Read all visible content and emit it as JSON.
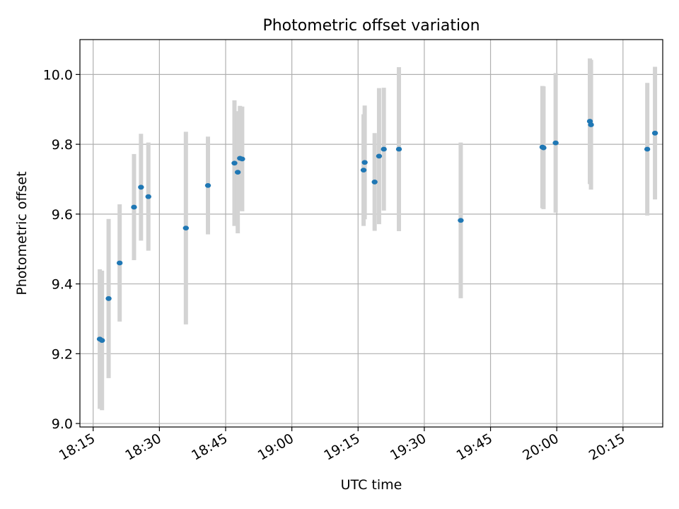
{
  "chart_data": {
    "type": "scatter",
    "title": "Photometric offset variation",
    "xlabel": "UTC time",
    "ylabel": "Photometric offset",
    "x_axis": {
      "kind": "time",
      "range": [
        "18:12",
        "20:24"
      ],
      "ticks": [
        "18:15",
        "18:30",
        "18:45",
        "19:00",
        "19:15",
        "19:30",
        "19:45",
        "20:00",
        "20:15"
      ]
    },
    "y_axis": {
      "range": [
        8.99,
        10.1
      ],
      "ticks": [
        "9.0",
        "9.2",
        "9.4",
        "9.6",
        "9.8",
        "10.0"
      ]
    },
    "grid": true,
    "colors": {
      "points": "#1f77b4",
      "error_bars": "#d3d3d3",
      "grid": "#b0b0b0"
    },
    "points": [
      {
        "x": "18:16:30",
        "y": 9.242,
        "yerr": 0.2
      },
      {
        "x": "18:17:00",
        "y": 9.238,
        "yerr": 0.2
      },
      {
        "x": "18:18:30",
        "y": 9.358,
        "yerr": 0.228
      },
      {
        "x": "18:21:00",
        "y": 9.46,
        "yerr": 0.168
      },
      {
        "x": "18:24:15",
        "y": 9.62,
        "yerr": 0.152
      },
      {
        "x": "18:25:50",
        "y": 9.677,
        "yerr": 0.153
      },
      {
        "x": "18:27:30",
        "y": 9.65,
        "yerr": 0.155
      },
      {
        "x": "18:36:00",
        "y": 9.56,
        "yerr": 0.276
      },
      {
        "x": "18:41:00",
        "y": 9.682,
        "yerr": 0.14
      },
      {
        "x": "18:47:00",
        "y": 9.746,
        "yerr": 0.18
      },
      {
        "x": "18:47:45",
        "y": 9.72,
        "yerr": 0.175
      },
      {
        "x": "18:48:15",
        "y": 9.76,
        "yerr": 0.15
      },
      {
        "x": "18:48:45",
        "y": 9.758,
        "yerr": 0.15
      },
      {
        "x": "19:16:15",
        "y": 9.726,
        "yerr": 0.16
      },
      {
        "x": "19:16:30",
        "y": 9.748,
        "yerr": 0.163
      },
      {
        "x": "19:18:45",
        "y": 9.692,
        "yerr": 0.14
      },
      {
        "x": "19:19:45",
        "y": 9.766,
        "yerr": 0.195
      },
      {
        "x": "19:20:50",
        "y": 9.786,
        "yerr": 0.176
      },
      {
        "x": "19:24:15",
        "y": 9.786,
        "yerr": 0.235
      },
      {
        "x": "19:38:15",
        "y": 9.582,
        "yerr": 0.223
      },
      {
        "x": "19:56:45",
        "y": 9.792,
        "yerr": 0.175
      },
      {
        "x": "19:57:00",
        "y": 9.79,
        "yerr": 0.176
      },
      {
        "x": "19:59:45",
        "y": 9.804,
        "yerr": 0.2
      },
      {
        "x": "20:07:30",
        "y": 9.866,
        "yerr": 0.18
      },
      {
        "x": "20:07:45",
        "y": 9.856,
        "yerr": 0.186
      },
      {
        "x": "20:20:30",
        "y": 9.786,
        "yerr": 0.19
      },
      {
        "x": "20:22:15",
        "y": 9.832,
        "yerr": 0.19
      }
    ]
  }
}
